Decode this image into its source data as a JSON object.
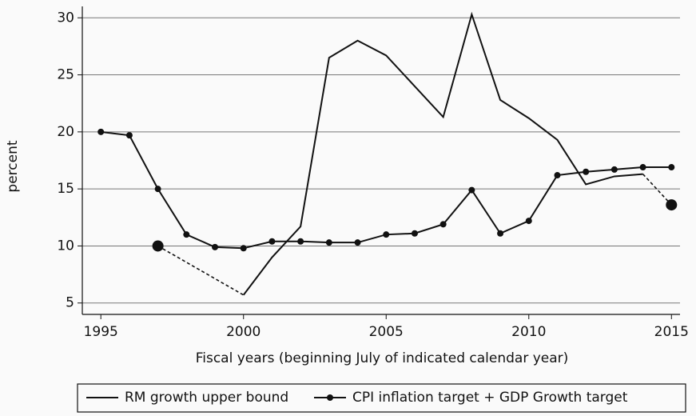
{
  "chart_data": {
    "type": "line",
    "x_label": "Fiscal years (beginning July of indicated calendar year)",
    "y_label": "percent",
    "xlim": [
      1994.35,
      2015.3
    ],
    "xticks": [
      1995,
      2000,
      2005,
      2010,
      2015
    ],
    "ylim": [
      4,
      31
    ],
    "yticks": [
      5,
      10,
      15,
      20,
      25,
      30
    ],
    "grid": true,
    "legend": "bottom",
    "series": [
      {
        "name": "RM growth upper bound",
        "color": "#111111",
        "x": [
          2000,
          2001,
          2002,
          2003,
          2004,
          2005,
          2006,
          2007,
          2008,
          2009,
          2010,
          2011,
          2012,
          2013,
          2014
        ],
        "values": [
          5.7,
          9,
          11.7,
          26.5,
          28,
          26.7,
          24,
          21.3,
          30.3,
          22.8,
          21.2,
          19.3,
          15.4,
          16.1,
          16.3
        ]
      },
      {
        "name": "CPI inflation target + GDP Growth target",
        "color": "#111111",
        "markers": true,
        "x": [
          1995,
          1996,
          1997,
          1998,
          1999,
          2000,
          2001,
          2002,
          2003,
          2004,
          2005,
          2006,
          2007,
          2008,
          2009,
          2010,
          2011,
          2012,
          2013,
          2014,
          2015
        ],
        "values": [
          20,
          19.7,
          15,
          11,
          9.9,
          9.8,
          10.4,
          10.4,
          10.3,
          10.3,
          11,
          11.1,
          11.9,
          14.9,
          11.1,
          12.2,
          16.2,
          16.5,
          16.7,
          16.9,
          16.9
        ]
      },
      {
        "color": "#111111",
        "dashed": true,
        "big_marker": [
          true,
          false
        ],
        "x": [
          1997,
          2000
        ],
        "values": [
          10,
          5.7
        ]
      },
      {
        "color": "#111111",
        "dashed": true,
        "big_marker": [
          false,
          true
        ],
        "x": [
          2014,
          2015
        ],
        "values": [
          16.3,
          13.6
        ]
      }
    ]
  }
}
